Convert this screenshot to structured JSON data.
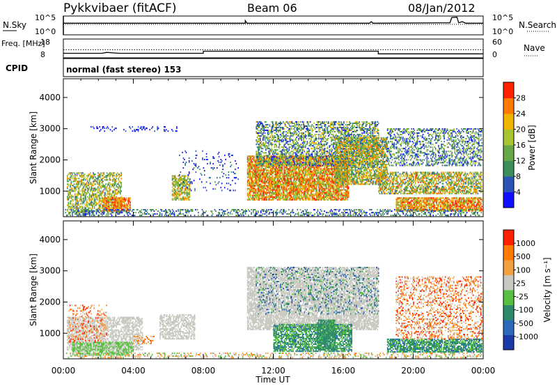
{
  "header": {
    "station": "Pykkvibaer (fitACF)",
    "beam": "Beam 06",
    "date": "08/Jan/2012"
  },
  "chart_data": [
    {
      "type": "line",
      "name": "noise-panel",
      "left_label": "N.Sky",
      "left_ticks": [
        "10^5",
        "10^0"
      ],
      "right_label": "N.Search",
      "right_ticks": [
        "10^5",
        "10^0"
      ],
      "series": [
        {
          "name": "N.Sky",
          "style": "solid",
          "points": [
            [
              0,
              3.1
            ],
            [
              10.4,
              3.1
            ],
            [
              10.4,
              3.8
            ],
            [
              10.5,
              3.1
            ],
            [
              17.5,
              3.1
            ],
            [
              17.6,
              3.5
            ],
            [
              17.7,
              3.1
            ],
            [
              22.1,
              3.2
            ],
            [
              22.2,
              4.6
            ],
            [
              22.5,
              4.7
            ],
            [
              22.6,
              3.2
            ],
            [
              22.8,
              3.5
            ],
            [
              23.0,
              3.1
            ],
            [
              24,
              3.1
            ]
          ]
        },
        {
          "name": "N.Search",
          "style": "dotted",
          "points": [
            [
              0,
              2.8
            ],
            [
              24,
              2.8
            ]
          ]
        }
      ]
    },
    {
      "type": "line",
      "name": "frequency-panel",
      "left_label": "Freq. [MHz]",
      "left_ticks": [
        "18",
        "8"
      ],
      "right_label": "Nave",
      "right_ticks": [
        "60",
        "0"
      ],
      "series": [
        {
          "name": "Freq.",
          "style": "solid",
          "points": [
            [
              0,
              10.4
            ],
            [
              2.2,
              10.4
            ],
            [
              2.5,
              10.9
            ],
            [
              2.9,
              10.6
            ],
            [
              3.2,
              10.4
            ],
            [
              8.0,
              10.4
            ],
            [
              8.0,
              11.5
            ],
            [
              18.0,
              11.5
            ],
            [
              18.0,
              10.1
            ],
            [
              24,
              10.1
            ]
          ]
        },
        {
          "name": "Nave",
          "style": "dotted",
          "points": [
            [
              0,
              12.3
            ],
            [
              24,
              12.3
            ]
          ]
        }
      ]
    },
    {
      "type": "table",
      "name": "cpid-panel",
      "label": "CPID",
      "text": "normal (fast stereo) 153"
    },
    {
      "type": "heatmap",
      "name": "power-panel",
      "ylabel": "Slant Range [km]",
      "yticks": [
        "4000",
        "3000",
        "2000",
        "1000"
      ],
      "ylim": [
        180,
        4600
      ],
      "xlim": [
        0,
        24
      ],
      "colorbar_title": "Power [dB]",
      "colorbar_ticks": [
        "28",
        "24",
        "20",
        "16",
        "12",
        "8",
        "4"
      ],
      "colors": [
        "#1010ff",
        "#2a54b8",
        "#3c8f5c",
        "#66a845",
        "#a8c430",
        "#f0b400",
        "#ff7a00",
        "#ff2200"
      ],
      "regions": [
        {
          "t0": 0.2,
          "t1": 3.3,
          "r0": 300,
          "r1": 1600,
          "c0": 0.2,
          "c1": 0.8,
          "d": 0.55
        },
        {
          "t0": 2.2,
          "t1": 3.8,
          "r0": 350,
          "r1": 800,
          "c0": 0.55,
          "c1": 1.0,
          "d": 0.75
        },
        {
          "t0": 6.2,
          "t1": 7.2,
          "r0": 700,
          "r1": 1500,
          "c0": 0.3,
          "c1": 0.8,
          "d": 0.7
        },
        {
          "t0": 10.5,
          "t1": 16.3,
          "r0": 700,
          "r1": 2100,
          "c0": 0.4,
          "c1": 1.0,
          "d": 0.8
        },
        {
          "t0": 11.0,
          "t1": 18.0,
          "r0": 1800,
          "r1": 3200,
          "c0": 0.05,
          "c1": 0.7,
          "d": 0.5
        },
        {
          "t0": 15.5,
          "t1": 18.5,
          "r0": 1200,
          "r1": 2700,
          "c0": 0.2,
          "c1": 0.85,
          "d": 0.7
        },
        {
          "t0": 18.0,
          "t1": 23.9,
          "r0": 900,
          "r1": 1600,
          "c0": 0.2,
          "c1": 0.9,
          "d": 0.6
        },
        {
          "t0": 19.0,
          "t1": 23.9,
          "r0": 350,
          "r1": 800,
          "c0": 0.45,
          "c1": 1.0,
          "d": 0.8
        },
        {
          "t0": 18.5,
          "t1": 23.9,
          "r0": 1800,
          "r1": 3000,
          "c0": 0.05,
          "c1": 0.6,
          "d": 0.4
        },
        {
          "t0": 0.1,
          "t1": 10.0,
          "r0": 200,
          "r1": 400,
          "c0": 0.05,
          "c1": 0.5,
          "d": 0.35
        },
        {
          "t0": 10.0,
          "t1": 23.9,
          "r0": 200,
          "r1": 400,
          "c0": 0.05,
          "c1": 0.5,
          "d": 0.35
        },
        {
          "t0": 1.5,
          "t1": 6.5,
          "r0": 2900,
          "r1": 3050,
          "c0": 0.0,
          "c1": 0.2,
          "d": 0.2
        },
        {
          "t0": 6.5,
          "t1": 10.0,
          "r0": 1000,
          "r1": 2300,
          "c0": 0.0,
          "c1": 0.3,
          "d": 0.08
        }
      ]
    },
    {
      "type": "heatmap",
      "name": "velocity-panel",
      "xlabel": "Time UT",
      "ylabel": "Slant Range [km]",
      "yticks": [
        "4000",
        "3000",
        "2000",
        "1000"
      ],
      "ylim": [
        180,
        4600
      ],
      "xlim": [
        0,
        24
      ],
      "xticks": [
        "00:00",
        "04:00",
        "08:00",
        "12:00",
        "16:00",
        "20:00",
        "00:00"
      ],
      "colorbar_title": "Velocity [m s⁻¹]",
      "colorbar_ticks": [
        "1000",
        "500",
        "100",
        "25",
        "-25",
        "-100",
        "-500",
        "-1000"
      ],
      "colors": [
        "#1a3aa8",
        "#2a6ab8",
        "#2c8c6a",
        "#58c040",
        "#c8c8c0",
        "#f0a040",
        "#ff7a00",
        "#ff2000"
      ],
      "regions": [
        {
          "t0": 0.2,
          "t1": 4.5,
          "r0": 450,
          "r1": 1500,
          "c0": 0.5,
          "c1": 0.6,
          "d": 0.6
        },
        {
          "t0": 0.5,
          "t1": 4.0,
          "r0": 280,
          "r1": 700,
          "c0": 0.4,
          "c1": 0.55,
          "d": 0.7
        },
        {
          "t0": 0.3,
          "t1": 2.5,
          "r0": 700,
          "r1": 1900,
          "c0": 0.55,
          "c1": 1.0,
          "d": 0.2
        },
        {
          "t0": 5.5,
          "t1": 7.5,
          "r0": 800,
          "r1": 1600,
          "c0": 0.5,
          "c1": 0.6,
          "d": 0.6
        },
        {
          "t0": 4.0,
          "t1": 5.2,
          "r0": 650,
          "r1": 900,
          "c0": 0.6,
          "c1": 0.9,
          "d": 0.4
        },
        {
          "t0": 10.5,
          "t1": 18.0,
          "r0": 1100,
          "r1": 3100,
          "c0": 0.5,
          "c1": 0.6,
          "d": 0.75
        },
        {
          "t0": 12.0,
          "t1": 16.5,
          "r0": 400,
          "r1": 1300,
          "c0": 0.2,
          "c1": 0.5,
          "d": 0.7
        },
        {
          "t0": 14.5,
          "t1": 15.5,
          "r0": 450,
          "r1": 1400,
          "c0": 0.25,
          "c1": 0.4,
          "d": 0.8
        },
        {
          "t0": 18.5,
          "t1": 23.9,
          "r0": 380,
          "r1": 800,
          "c0": 0.2,
          "c1": 0.45,
          "d": 0.75
        },
        {
          "t0": 19.0,
          "t1": 23.9,
          "r0": 800,
          "r1": 2800,
          "c0": 0.5,
          "c1": 1.0,
          "d": 0.3
        },
        {
          "t0": 0.1,
          "t1": 23.9,
          "r0": 200,
          "r1": 380,
          "c0": 0.4,
          "c1": 0.8,
          "d": 0.3
        },
        {
          "t0": 11.0,
          "t1": 18.0,
          "r0": 1600,
          "r1": 3100,
          "c0": 0.1,
          "c1": 0.45,
          "d": 0.15
        }
      ]
    }
  ]
}
